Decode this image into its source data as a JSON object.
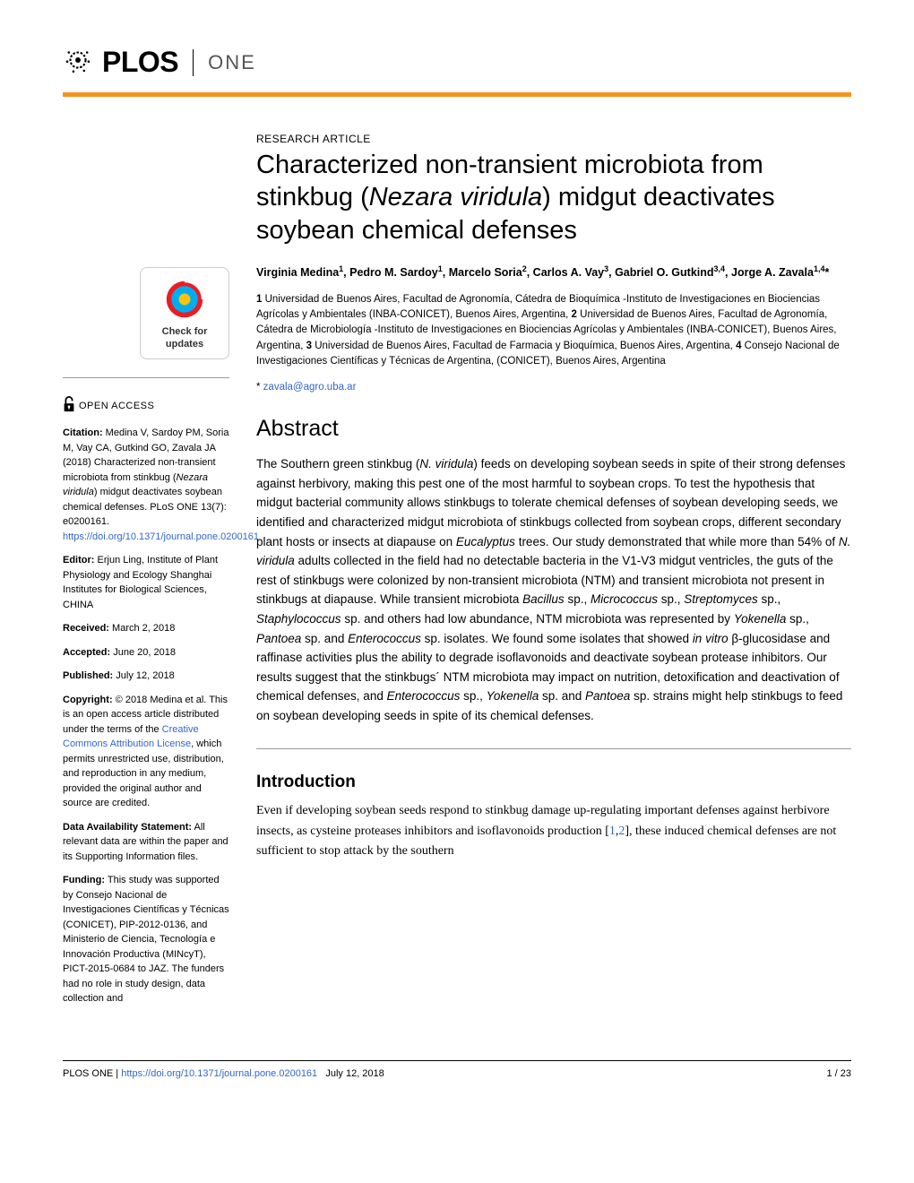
{
  "logo": {
    "plos": "PLOS",
    "one": "ONE"
  },
  "article_type": "RESEARCH ARTICLE",
  "title_part1": "Characterized non-transient microbiota from stinkbug (",
  "title_italic": "Nezara viridula",
  "title_part2": ") midgut deactivates soybean chemical defenses",
  "authors_html": "Virginia Medina<sup>1</sup>, Pedro M. Sardoy<sup>1</sup>, Marcelo Soria<sup>2</sup>, Carlos A. Vay<sup>3</sup>, Gabriel O. Gutkind<sup>3,4</sup>, Jorge A. Zavala<sup>1,4</sup>*",
  "affiliations_html": "<strong>1</strong> Universidad de Buenos Aires, Facultad de Agronomía, Cátedra de Bioquímica -Instituto de Investigaciones en Biociencias Agrícolas y Ambientales (INBA-CONICET), Buenos Aires, Argentina, <strong>2</strong> Universidad de Buenos Aires, Facultad de Agronomía, Cátedra de Microbiología -Instituto de Investigaciones en Biociencias Agrícolas y Ambientales (INBA-CONICET), Buenos Aires, Argentina, <strong>3</strong> Universidad de Buenos Aires, Facultad de Farmacia y Bioquímica, Buenos Aires, Argentina, <strong>4</strong> Consejo Nacional de Investigaciones Científicas y Técnicas de Argentina, (CONICET), Buenos Aires, Argentina",
  "email_prefix": "* ",
  "email": "zavala@agro.uba.ar",
  "abstract_heading": "Abstract",
  "abstract_html": "The Southern green stinkbug (<span class=\"italic\">N. viridula</span>) feeds on developing soybean seeds in spite of their strong defenses against herbivory, making this pest one of the most harmful to soybean crops. To test the hypothesis that midgut bacterial community allows stinkbugs to tolerate chemical defenses of soybean developing seeds, we identified and characterized midgut microbiota of stinkbugs collected from soybean crops, different secondary plant hosts or insects at diapause on <span class=\"italic\">Eucalyptus</span> trees. Our study demonstrated that while more than 54% of <span class=\"italic\">N. viridula</span> adults collected in the field had no detectable bacteria in the V1-V3 midgut ventricles, the guts of the rest of stinkbugs were colonized by non-transient microbiota (NTM) and transient microbiota not present in stinkbugs at diapause. While transient microbiota <span class=\"italic\">Bacillus</span> sp., <span class=\"italic\">Micrococcus</span> sp., <span class=\"italic\">Streptomyces</span> sp., <span class=\"italic\">Staphylococcus</span> sp. and others had low abundance, NTM microbiota was represented by <span class=\"italic\">Yokenella</span> sp., <span class=\"italic\">Pantoea</span> sp. and <span class=\"italic\">Enterococcus</span> sp. isolates. We found some isolates that showed <span class=\"italic\">in vitro</span> β-glucosidase and raffinase activities plus the ability to degrade isoflavonoids and deactivate soybean protease inhibitors. Our results suggest that the stinkbugs´ NTM microbiota may impact on nutrition, detoxification and deactivation of chemical defenses, and <span class=\"italic\">Enterococcus</span> sp., <span class=\"italic\">Yokenella</span> sp. and <span class=\"italic\">Pantoea</span> sp. strains might help stinkbugs to feed on soybean developing seeds in spite of its chemical defenses.",
  "intro_heading": "Introduction",
  "intro_html": "Even if developing soybean seeds respond to stinkbug damage up-regulating important defenses against herbivore insects, as cysteine proteases inhibitors and isoflavonoids production [<a href=\"#\">1</a>,<a href=\"#\">2</a>], these induced chemical defenses are not sufficient to stop attack by the southern",
  "sidebar": {
    "check_updates": "Check for updates",
    "open_access": "OPEN ACCESS",
    "citation_label": "Citation:",
    "citation_html": " Medina V, Sardoy PM, Soria M, Vay CA, Gutkind GO, Zavala JA (2018) Characterized non-transient microbiota from stinkbug (<span class=\"italic\">Nezara viridula</span>) midgut deactivates soybean chemical defenses. PLoS ONE 13(7): e0200161. <a href=\"#\">https://doi.org/10.1371/journal.pone.0200161</a>",
    "editor_label": "Editor:",
    "editor_text": " Erjun Ling, Institute of Plant Physiology and Ecology Shanghai Institutes for Biological Sciences, CHINA",
    "received_label": "Received:",
    "received_text": " March 2, 2018",
    "accepted_label": "Accepted:",
    "accepted_text": " June 20, 2018",
    "published_label": "Published:",
    "published_text": " July 12, 2018",
    "copyright_label": "Copyright:",
    "copyright_html": " © 2018 Medina et al. This is an open access article distributed under the terms of the <a href=\"#\">Creative Commons Attribution License</a>, which permits unrestricted use, distribution, and reproduction in any medium, provided the original author and source are credited.",
    "data_label": "Data Availability Statement:",
    "data_text": " All relevant data are within the paper and its Supporting Information files.",
    "funding_label": "Funding:",
    "funding_text": " This study was supported by Consejo Nacional de Investigaciones Científicas y Técnicas (CONICET), PIP-2012-0136, and Ministerio de Ciencia, Tecnología e Innovación Productiva (MINcyT), PICT-2015-0684 to JAZ. The funders had no role in study design, data collection and"
  },
  "footer": {
    "journal": "PLOS ONE | ",
    "doi": "https://doi.org/10.1371/journal.pone.0200161",
    "date": "July 12, 2018",
    "page": "1 / 23"
  },
  "colors": {
    "orange_bar": "#f7941e",
    "link_color": "#3366cc",
    "update_outer": "#ed1c24",
    "update_inner": "#00aeef",
    "update_center": "#ffc20e"
  }
}
